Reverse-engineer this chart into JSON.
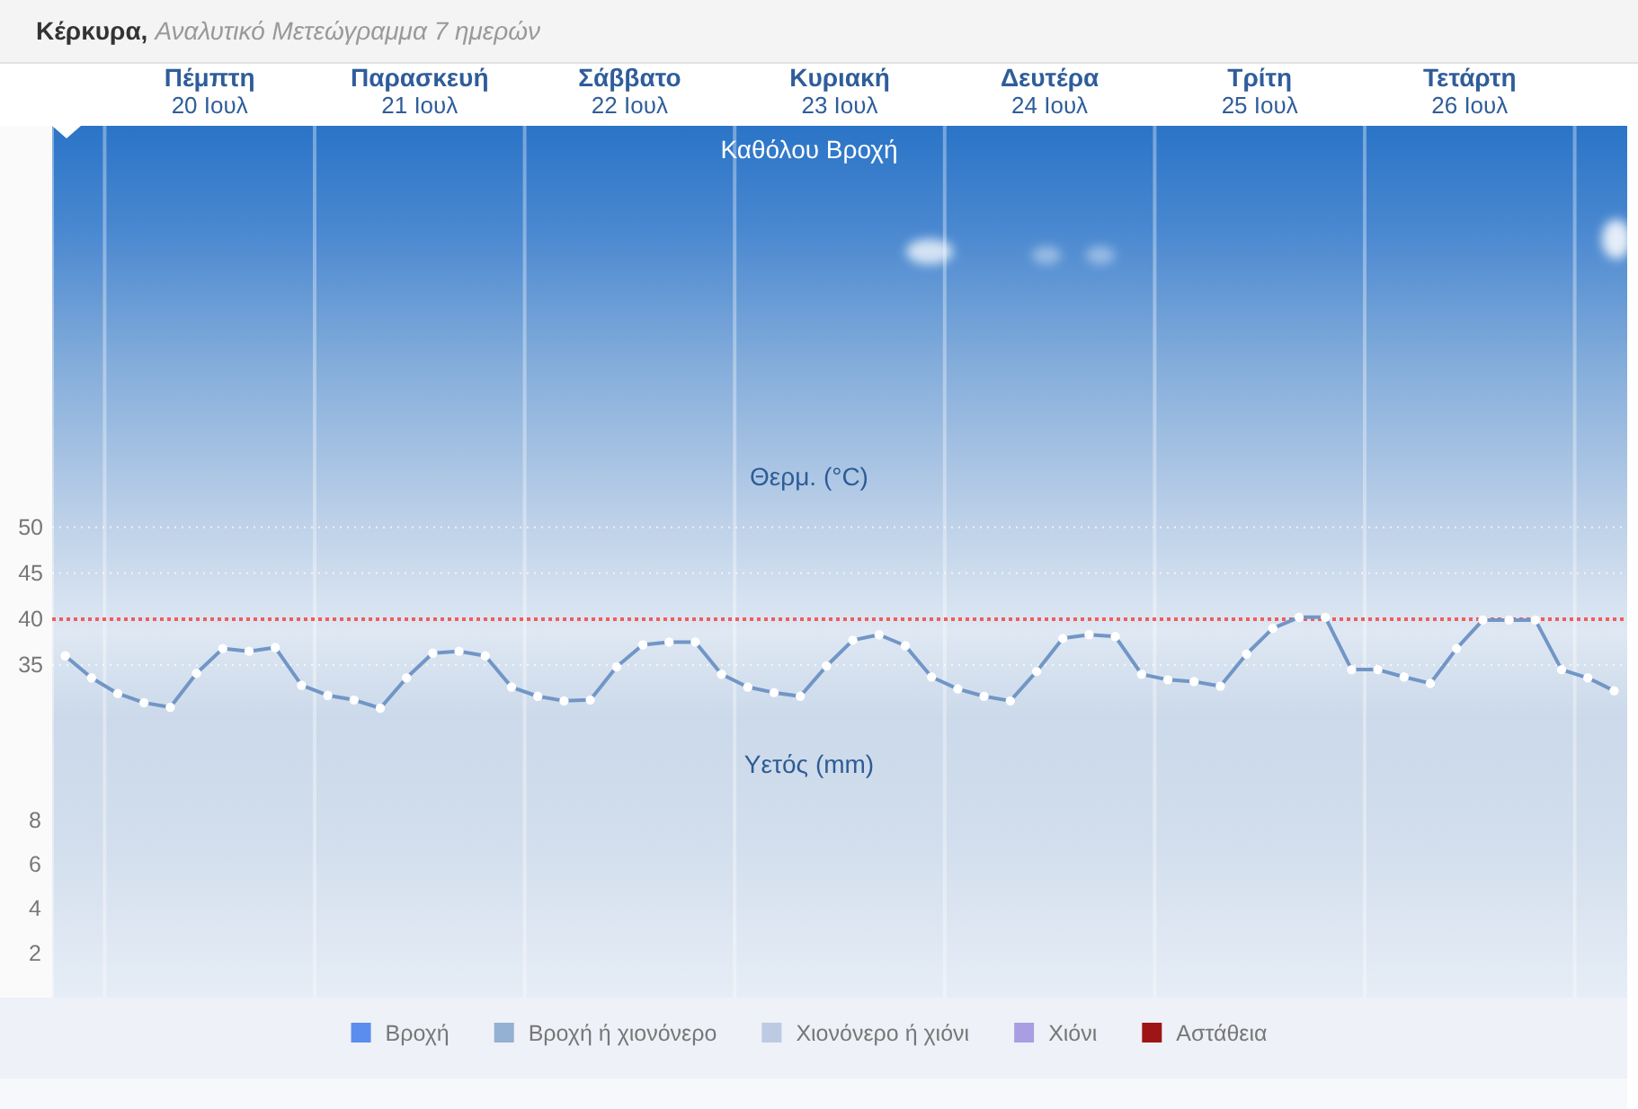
{
  "chart_data": {
    "type": "line",
    "title": "Κέρκυρα,",
    "subtitle": "Αναλυτικό Μετεώγραμμα 7 ημερών",
    "y2label": "Υετός (mm)",
    "annotations": [
      "Καθόλου Βροχή",
      "Θερμ. (°C)"
    ],
    "x": [
      "--07-19T19:30",
      "--07-19T22:30",
      "--07-20T01:30",
      "--07-20T04:30",
      "--07-20T07:30",
      "--07-20T10:30",
      "--07-20T13:30",
      "--07-20T16:30",
      "--07-20T19:30",
      "--07-20T22:30",
      "--07-21T01:30",
      "--07-21T04:30",
      "--07-21T07:30",
      "--07-21T10:30",
      "--07-21T13:30",
      "--07-21T16:30",
      "--07-21T19:30",
      "--07-21T22:30",
      "--07-22T01:30",
      "--07-22T04:30",
      "--07-22T07:30",
      "--07-22T10:30",
      "--07-22T13:30",
      "--07-22T16:30",
      "--07-22T19:30",
      "--07-22T22:30",
      "--07-23T01:30",
      "--07-23T04:30",
      "--07-23T07:30",
      "--07-23T10:30",
      "--07-23T13:30",
      "--07-23T16:30",
      "--07-23T19:30",
      "--07-23T22:30",
      "--07-24T01:30",
      "--07-24T04:30",
      "--07-24T07:30",
      "--07-24T10:30",
      "--07-24T13:30",
      "--07-24T16:30",
      "--07-24T19:30",
      "--07-24T22:30",
      "--07-25T01:30",
      "--07-25T04:30",
      "--07-25T07:30",
      "--07-25T10:30",
      "--07-25T13:30",
      "--07-25T16:30",
      "--07-25T19:30",
      "--07-25T22:30",
      "--07-26T01:30",
      "--07-26T04:30",
      "--07-26T07:30",
      "--07-26T10:30",
      "--07-26T13:30",
      "--07-26T16:30",
      "--07-26T19:30",
      "--07-26T22:30",
      "--07-27T01:30",
      "--07-27T04:30"
    ],
    "xlim": [
      "--07-19T18:00",
      "--07-27T06:00"
    ],
    "xticks": [
      {
        "value": "--07-20T00:00",
        "label": null
      },
      {
        "value": "--07-20T12:00",
        "label": "Πέμπτη\n20 Ιουλ"
      },
      {
        "value": "--07-21T00:00",
        "label": null
      },
      {
        "value": "--07-21T12:00",
        "label": "Παρασκευή\n21 Ιουλ"
      },
      {
        "value": "--07-22T00:00",
        "label": null
      },
      {
        "value": "--07-22T12:00",
        "label": "Σάββατο\n22 Ιουλ"
      },
      {
        "value": "--07-23T00:00",
        "label": null
      },
      {
        "value": "--07-23T12:00",
        "label": "Κυριακή\n23 Ιουλ"
      },
      {
        "value": "--07-24T00:00",
        "label": null
      },
      {
        "value": "--07-24T12:00",
        "label": "Δευτέρα\n24 Ιουλ"
      },
      {
        "value": "--07-25T00:00",
        "label": null
      },
      {
        "value": "--07-25T12:00",
        "label": "Τρίτη\n25 Ιουλ"
      },
      {
        "value": "--07-26T00:00",
        "label": null
      },
      {
        "value": "--07-26T12:00",
        "label": "Τετάρτη\n26 Ιουλ"
      },
      {
        "value": "--07-27T00:00",
        "label": null
      }
    ],
    "ylim": [
      -1.2,
      93.7
    ],
    "yticks": [
      35,
      40,
      45,
      50
    ],
    "y2lim": [
      0,
      39.3
    ],
    "y2ticks": [
      2,
      4,
      6,
      8
    ],
    "series": [
      {
        "color": "#7196c6",
        "values": [
          36.0,
          33.6,
          31.9,
          30.9,
          30.4,
          34.1,
          36.8,
          36.5,
          36.9,
          32.8,
          31.7,
          31.2,
          30.3,
          33.6,
          36.3,
          36.5,
          36.0,
          32.6,
          31.6,
          31.1,
          31.2,
          34.8,
          37.2,
          37.5,
          37.5,
          34.0,
          32.6,
          32.0,
          31.6,
          34.9,
          37.7,
          38.3,
          37.1,
          33.7,
          32.4,
          31.6,
          31.1,
          34.3,
          37.9,
          38.3,
          38.1,
          34.0,
          33.4,
          33.2,
          32.7,
          36.2,
          39.0,
          40.2,
          40.2,
          34.5,
          34.5,
          33.7,
          33.0,
          36.8,
          39.9,
          39.9,
          39.9,
          34.5,
          33.6,
          32.2
        ]
      },
      {
        "type": "bar",
        "name": "Βροχή",
        "color": "#5b8def",
        "values": [
          null,
          null,
          null,
          null,
          null,
          null,
          null,
          null,
          null,
          null,
          null,
          null,
          null,
          null,
          null,
          null,
          null,
          null,
          null,
          null,
          null,
          null,
          null,
          null,
          null,
          null,
          null,
          null,
          null,
          null,
          null,
          null,
          null,
          null,
          null,
          null,
          null,
          null,
          null,
          null,
          null,
          null,
          null,
          null,
          null,
          null,
          null,
          null,
          null,
          null,
          null,
          null,
          null,
          null,
          null,
          null,
          null,
          null,
          null,
          null
        ]
      },
      {
        "type": "bar",
        "name": "Βροχή ή χιονόνερο",
        "color": "#94b0d3",
        "values": [
          null,
          null,
          null,
          null,
          null,
          null,
          null,
          null,
          null,
          null,
          null,
          null,
          null,
          null,
          null,
          null,
          null,
          null,
          null,
          null,
          null,
          null,
          null,
          null,
          null,
          null,
          null,
          null,
          null,
          null,
          null,
          null,
          null,
          null,
          null,
          null,
          null,
          null,
          null,
          null,
          null,
          null,
          null,
          null,
          null,
          null,
          null,
          null,
          null,
          null,
          null,
          null,
          null,
          null,
          null,
          null,
          null,
          null,
          null,
          null
        ]
      },
      {
        "type": "bar",
        "name": "Χιονόνερο ή χιόνι",
        "color": "#bccbe3",
        "values": [
          null,
          null,
          null,
          null,
          null,
          null,
          null,
          null,
          null,
          null,
          null,
          null,
          null,
          null,
          null,
          null,
          null,
          null,
          null,
          null,
          null,
          null,
          null,
          null,
          null,
          null,
          null,
          null,
          null,
          null,
          null,
          null,
          null,
          null,
          null,
          null,
          null,
          null,
          null,
          null,
          null,
          null,
          null,
          null,
          null,
          null,
          null,
          null,
          null,
          null,
          null,
          null,
          null,
          null,
          null,
          null,
          null,
          null,
          null,
          null
        ]
      },
      {
        "type": "bar",
        "name": "Χιόνι",
        "color": "#a99ee2",
        "values": [
          null,
          null,
          null,
          null,
          null,
          null,
          null,
          null,
          null,
          null,
          null,
          null,
          null,
          null,
          null,
          null,
          null,
          null,
          null,
          null,
          null,
          null,
          null,
          null,
          null,
          null,
          null,
          null,
          null,
          null,
          null,
          null,
          null,
          null,
          null,
          null,
          null,
          null,
          null,
          null,
          null,
          null,
          null,
          null,
          null,
          null,
          null,
          null,
          null,
          null,
          null,
          null,
          null,
          null,
          null,
          null,
          null,
          null,
          null,
          null
        ]
      },
      {
        "type": "bar",
        "name": "Αστάθεια",
        "color": "#9e1515",
        "values": [
          null,
          null,
          null,
          null,
          null,
          null,
          null,
          null,
          null,
          null,
          null,
          null,
          null,
          null,
          null,
          null,
          null,
          null,
          null,
          null,
          null,
          null,
          null,
          null,
          null,
          null,
          null,
          null,
          null,
          null,
          null,
          null,
          null,
          null,
          null,
          null,
          null,
          null,
          null,
          null,
          null,
          null,
          null,
          null,
          null,
          null,
          null,
          null,
          null,
          null,
          null,
          null,
          null,
          null,
          null,
          null,
          null,
          null,
          null,
          null
        ]
      }
    ],
    "ref_lines": [
      {
        "axis": "y",
        "value": 40,
        "color": "#f25c5c",
        "line_style": "dotted"
      }
    ],
    "grid": true,
    "legend": "bottom",
    "marker": "circle"
  }
}
